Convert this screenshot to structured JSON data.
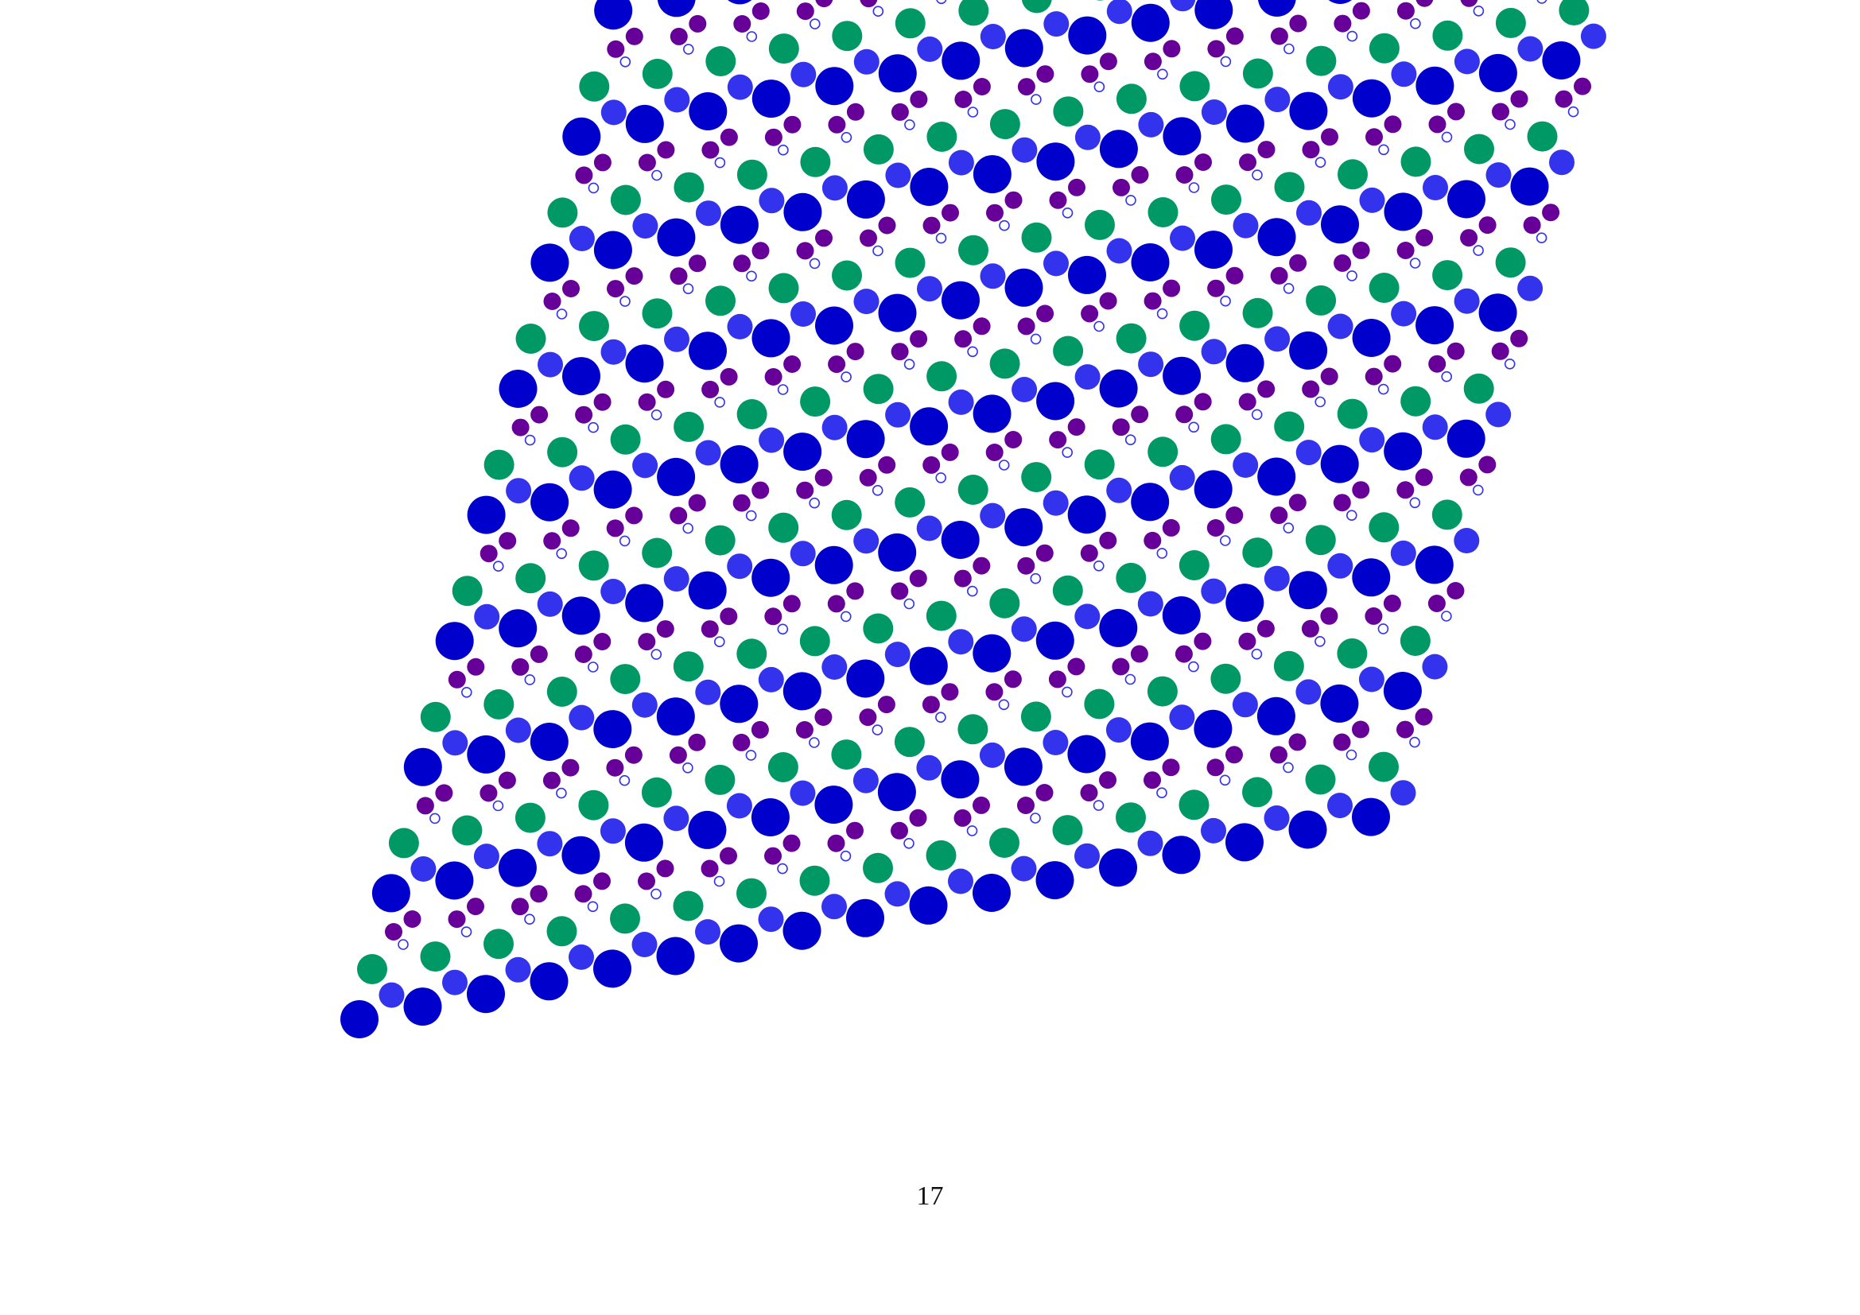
{
  "page_number": "17",
  "lattice": {
    "rows": 17,
    "columns": 17,
    "colors": {
      "dark_blue": "#0000cc",
      "medium_blue": "#3333ee",
      "green": "#009966",
      "purple": "#660099",
      "ring": "#3333ee"
    }
  }
}
